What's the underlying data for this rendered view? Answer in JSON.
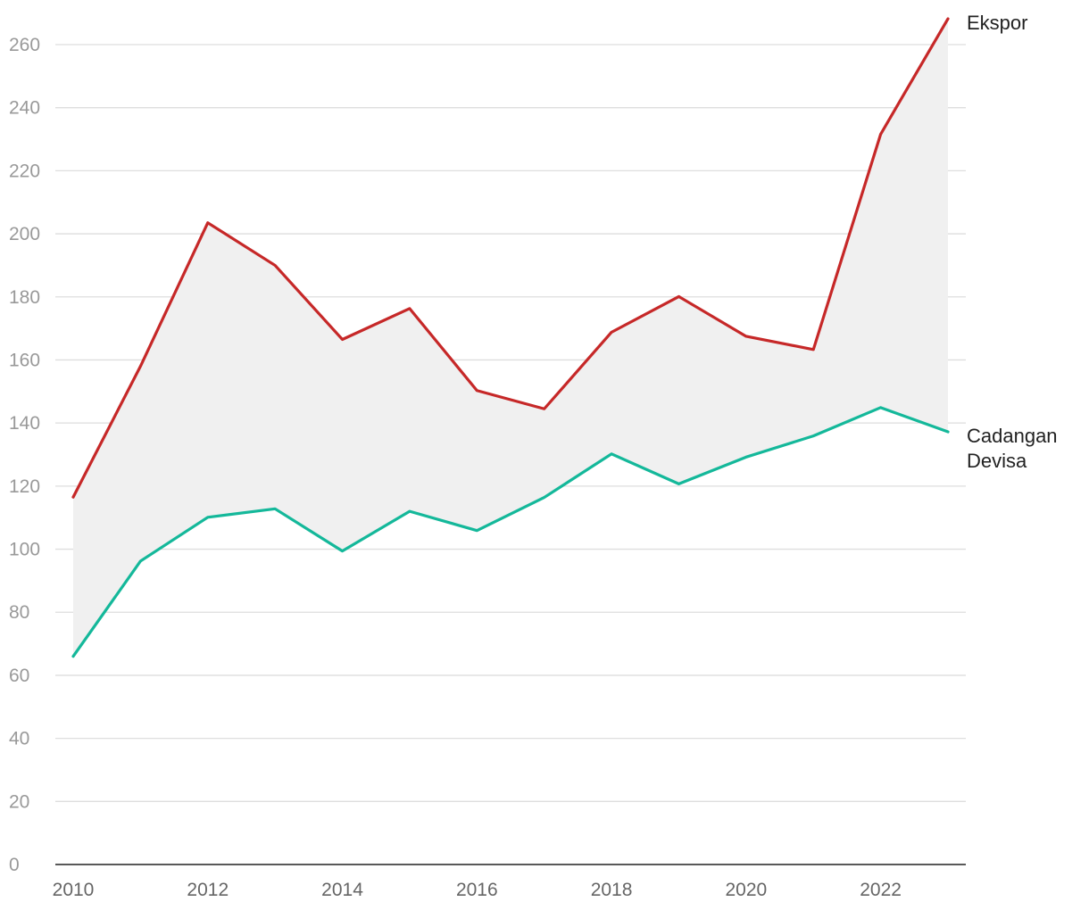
{
  "chart_data": {
    "type": "line",
    "x": [
      2010,
      2011,
      2012,
      2013,
      2014,
      2015,
      2016,
      2017,
      2018,
      2019,
      2020,
      2021,
      2022,
      2023
    ],
    "x_tick_labels": [
      "2010",
      "2012",
      "2014",
      "2016",
      "2018",
      "2020",
      "2022"
    ],
    "y_tick_labels": [
      "0",
      "20",
      "40",
      "60",
      "80",
      "100",
      "120",
      "140",
      "160",
      "180",
      "200",
      "220",
      "240",
      "260"
    ],
    "ylim": [
      0,
      270
    ],
    "grid": true,
    "fill_between_series": true,
    "fill_color": "#f0f0f0",
    "series": [
      {
        "name": "Ekspor",
        "label_lines": [
          "Ekspor"
        ],
        "color": "#c62828",
        "values": [
          116.5,
          158,
          203.5,
          190,
          166.5,
          176.3,
          150.3,
          144.5,
          168.8,
          180.1,
          167.5,
          163.3,
          231.6,
          268.2
        ]
      },
      {
        "name": "Cadangan Devisa",
        "label_lines": [
          "Cadangan",
          "Devisa"
        ],
        "color": "#14b89a",
        "values": [
          66,
          96.2,
          110.1,
          112.8,
          99.4,
          112,
          105.9,
          116.4,
          130.2,
          120.7,
          129.2,
          135.9,
          144.9,
          137.2
        ]
      }
    ]
  }
}
